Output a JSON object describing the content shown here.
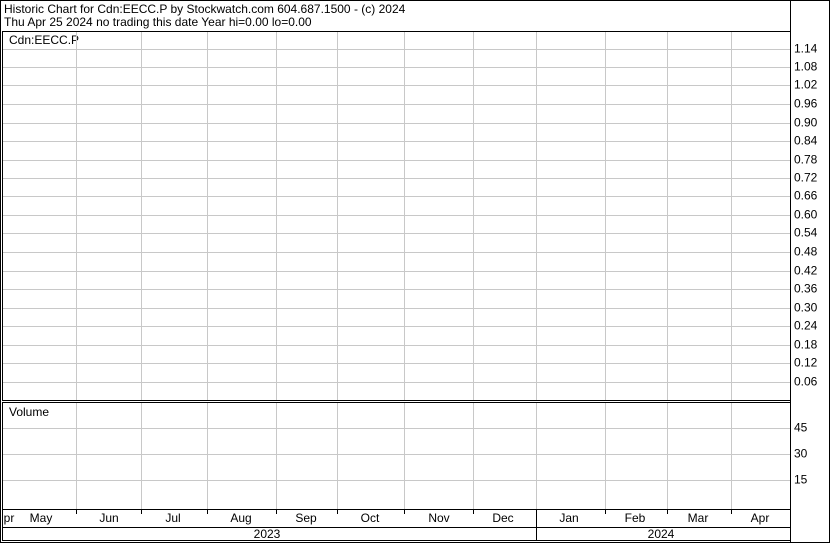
{
  "chart_data": [
    {
      "type": "line",
      "title": "Historic Chart for Cdn:EECC.P by Stockwatch.com 604.687.1500 - (c) 2024",
      "subtitle": "Thu Apr 25 2024   no trading this date  Year hi=0.00  lo=0.00",
      "panel_label": "Cdn:EECC.P",
      "ylim": [
        0,
        1.2
      ],
      "yticks": [
        {
          "value": 0.06,
          "label": "0.06"
        },
        {
          "value": 0.12,
          "label": "0.12"
        },
        {
          "value": 0.18,
          "label": "0.18"
        },
        {
          "value": 0.24,
          "label": "0.24"
        },
        {
          "value": 0.3,
          "label": "0.30"
        },
        {
          "value": 0.36,
          "label": "0.36"
        },
        {
          "value": 0.42,
          "label": "0.42"
        },
        {
          "value": 0.48,
          "label": "0.48"
        },
        {
          "value": 0.54,
          "label": "0.54"
        },
        {
          "value": 0.6,
          "label": "0.60"
        },
        {
          "value": 0.66,
          "label": "0.66"
        },
        {
          "value": 0.72,
          "label": "0.72"
        },
        {
          "value": 0.78,
          "label": "0.78"
        },
        {
          "value": 0.84,
          "label": "0.84"
        },
        {
          "value": 0.9,
          "label": "0.90"
        },
        {
          "value": 0.96,
          "label": "0.96"
        },
        {
          "value": 1.02,
          "label": "1.02"
        },
        {
          "value": 1.08,
          "label": "1.08"
        },
        {
          "value": 1.14,
          "label": "1.14"
        }
      ],
      "grid": true
    },
    {
      "type": "bar",
      "panel_label": "Volume",
      "ylim": [
        0,
        60
      ],
      "yticks": [
        15,
        30,
        45
      ],
      "grid": true,
      "categories": [
        "pr",
        "May",
        "Jun",
        "Jul",
        "Aug",
        "Sep",
        "Oct",
        "Nov",
        "Dec",
        "Jan",
        "Feb",
        "Mar",
        "Apr"
      ],
      "years": [
        "2023",
        "2024"
      ]
    }
  ]
}
